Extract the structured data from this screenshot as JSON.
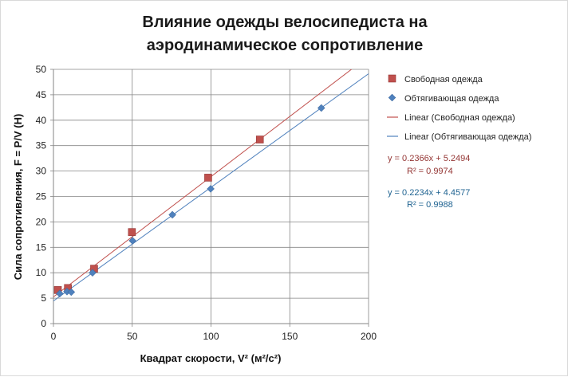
{
  "chart_data": {
    "type": "scatter",
    "title_line1": "Влияние одежды велосипедиста на",
    "title_line2": "аэродинамическое сопротивление",
    "xlabel": "Квадрат скорости, V² (м²/с²)",
    "ylabel": "Сила сопротивления, F = P/V (Н)",
    "xlim": [
      0,
      200
    ],
    "ylim": [
      0,
      50
    ],
    "xticks": [
      0,
      50,
      100,
      150,
      200
    ],
    "yticks": [
      0,
      5,
      10,
      15,
      20,
      25,
      30,
      35,
      40,
      45,
      50
    ],
    "grid": "horizontal major gridlines",
    "legend_position": "right",
    "series": [
      {
        "name": "Свободная одежда",
        "color": "#c0504d",
        "marker": "square",
        "points": [
          [
            2.8,
            6.6
          ],
          [
            9.2,
            7.0
          ],
          [
            25.8,
            10.8
          ],
          [
            49.8,
            18.0
          ],
          [
            98.2,
            28.7
          ],
          [
            131.0,
            36.2
          ]
        ],
        "trendline": {
          "name": "Linear (Свободная одежда)",
          "slope": 0.2366,
          "intercept": 5.2494,
          "equation_label": "y = 0.2366x + 5.2494",
          "r2_label": "R² = 0.9974"
        }
      },
      {
        "name": "Обтягивающая одежда",
        "color": "#4f81bd",
        "marker": "diamond",
        "points": [
          [
            4.0,
            5.9
          ],
          [
            8.6,
            6.3
          ],
          [
            11.3,
            6.2
          ],
          [
            24.8,
            10.0
          ],
          [
            50.2,
            16.3
          ],
          [
            75.5,
            21.4
          ],
          [
            99.8,
            26.5
          ],
          [
            170.0,
            42.4
          ]
        ],
        "trendline": {
          "name": "Linear (Обтягивающая одежда)",
          "slope": 0.2234,
          "intercept": 4.4577,
          "equation_label": "y = 0.2234x + 4.4577",
          "r2_label": "R² = 0.9988"
        }
      }
    ]
  }
}
